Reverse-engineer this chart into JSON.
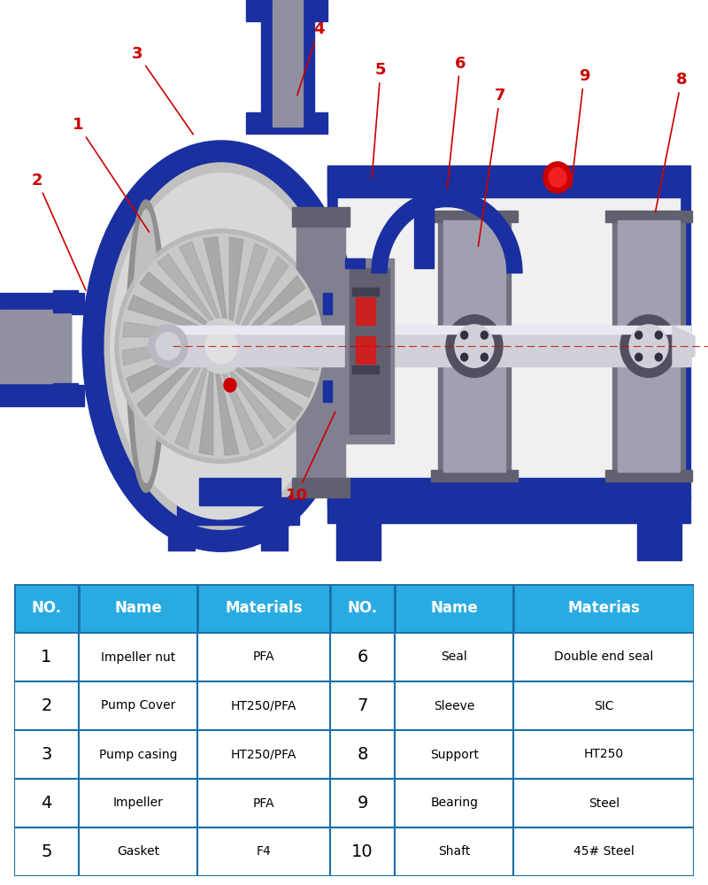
{
  "table_headers": [
    "NO.",
    "Name",
    "Materials",
    "NO.",
    "Name",
    "Materias"
  ],
  "table_rows": [
    [
      "1",
      "Impeller nut",
      "PFA",
      "6",
      "Seal",
      "Double end seal"
    ],
    [
      "2",
      "Pump Cover",
      "HT250/PFA",
      "7",
      "Sleeve",
      "SIC"
    ],
    [
      "3",
      "Pump casing",
      "HT250/PFA",
      "8",
      "Support",
      "HT250"
    ],
    [
      "4",
      "Impeller",
      "PFA",
      "9",
      "Bearing",
      "Steel"
    ],
    [
      "5",
      "Gasket",
      "F4",
      "10",
      "Shaft",
      "45# Steel"
    ]
  ],
  "header_bg": "#29ABE2",
  "header_text_color": "#FFFFFF",
  "table_border_color": "#1A6FA8",
  "row_bg": "#FFFFFF",
  "row_text_color": "#000000",
  "label_color": "#CC0000",
  "bg_color": "#FFFFFF",
  "blue_dark": "#1a2fa0",
  "blue_mid": "#2050c0",
  "gray_light": "#c8c8c8",
  "gray_dark": "#909090",
  "gray_mid": "#b0b0b0",
  "white": "#ffffff"
}
